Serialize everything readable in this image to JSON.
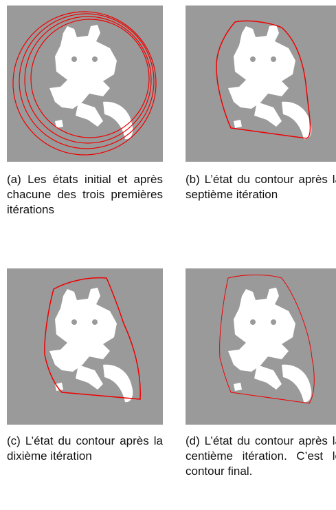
{
  "figures": [
    {
      "caption": "(a) Les états initial et après chacune des trois premières itérations"
    },
    {
      "caption": "(b) L’état du contour après la septième itération"
    },
    {
      "caption": "(c) L’état du contour après la dixième itération"
    },
    {
      "caption": "(d) L’état du contour après la centième itération. C’est le contour final."
    }
  ]
}
